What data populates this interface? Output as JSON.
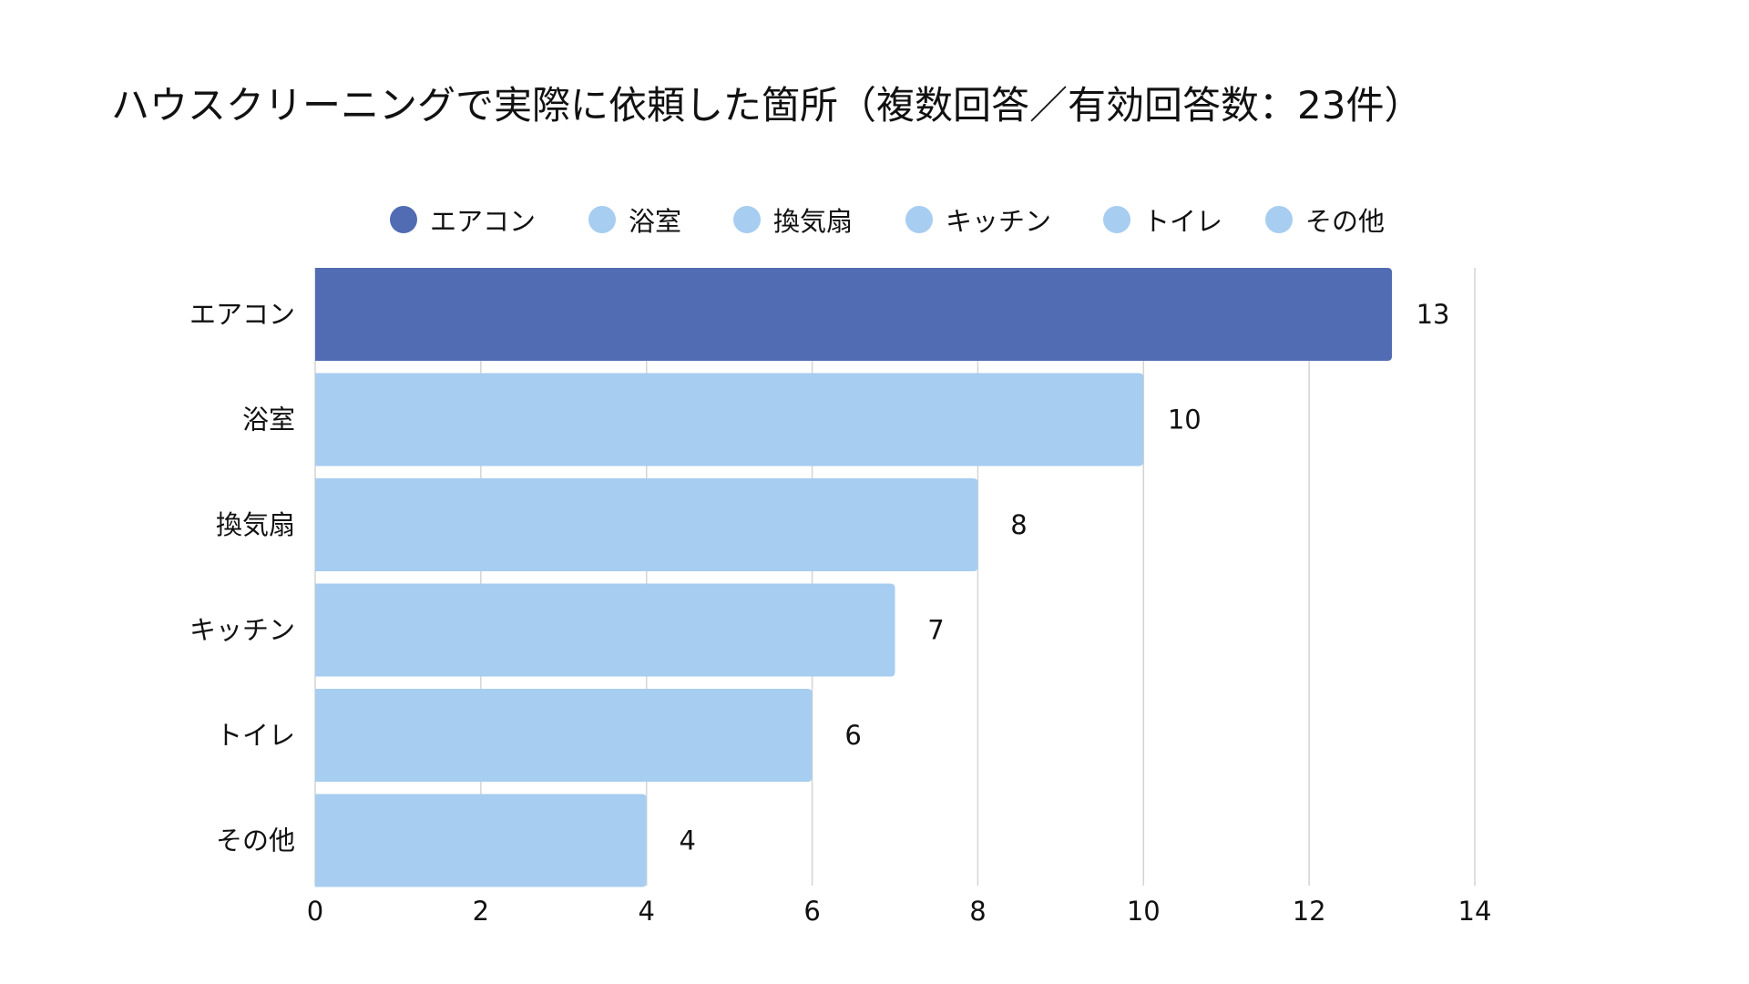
{
  "chart_data": {
    "type": "bar",
    "orientation": "horizontal",
    "title": "ハウスクリーニングで実際に依頼した箇所（複数回答／有効回答数：23件）",
    "categories": [
      "エアコン",
      "浴室",
      "換気扇",
      "キッチン",
      "トイレ",
      "その他"
    ],
    "values": [
      13,
      10,
      8,
      7,
      6,
      4
    ],
    "colors": [
      "#516cb3",
      "#a7cdf0",
      "#a7cdf0",
      "#a7cdf0",
      "#a7cdf0",
      "#a7cdf0"
    ],
    "xlim": [
      0,
      14
    ],
    "xticks": [
      0,
      2,
      4,
      6,
      8,
      10,
      12,
      14
    ],
    "xlabel": "",
    "ylabel": "",
    "grid": true,
    "legend": {
      "position": "top",
      "entries": [
        "エアコン",
        "浴室",
        "換気扇",
        "キッチン",
        "トイレ",
        "その他"
      ]
    }
  }
}
